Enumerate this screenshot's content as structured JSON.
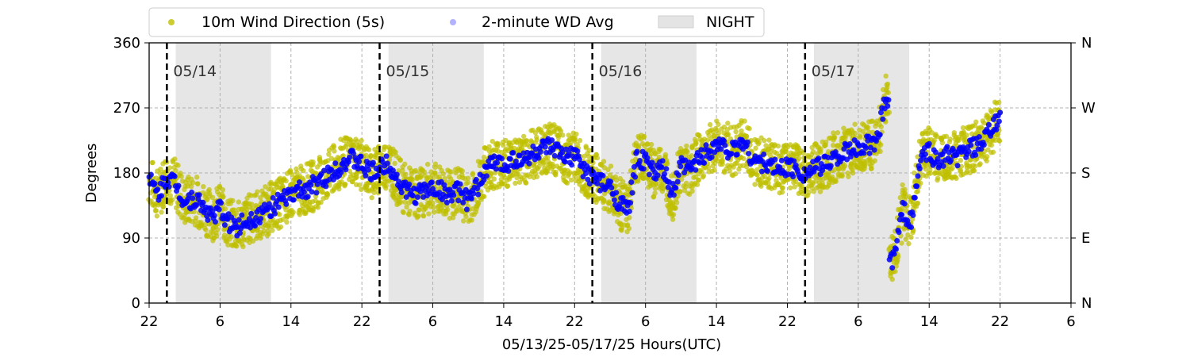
{
  "chart_data": {
    "type": "scatter",
    "title": "",
    "xlabel": "05/13/25-05/17/25  Hours(UTC)",
    "ylabel": "Degrees",
    "xlim": [
      "2025-05-13T22:00",
      "2025-05-18T06:00"
    ],
    "ylim": [
      0,
      360
    ],
    "x_ticks": [
      {
        "t": "2025-05-13T22:00",
        "label": "22"
      },
      {
        "t": "2025-05-14T06:00",
        "label": "6"
      },
      {
        "t": "2025-05-14T14:00",
        "label": "14"
      },
      {
        "t": "2025-05-14T22:00",
        "label": "22"
      },
      {
        "t": "2025-05-15T06:00",
        "label": "6"
      },
      {
        "t": "2025-05-15T14:00",
        "label": "14"
      },
      {
        "t": "2025-05-15T22:00",
        "label": "22"
      },
      {
        "t": "2025-05-16T06:00",
        "label": "6"
      },
      {
        "t": "2025-05-16T14:00",
        "label": "14"
      },
      {
        "t": "2025-05-16T22:00",
        "label": "22"
      },
      {
        "t": "2025-05-17T06:00",
        "label": "6"
      },
      {
        "t": "2025-05-17T14:00",
        "label": "14"
      },
      {
        "t": "2025-05-17T22:00",
        "label": "22"
      },
      {
        "t": "2025-05-18T06:00",
        "label": "6"
      }
    ],
    "y_ticks": [
      0,
      90,
      180,
      270,
      360
    ],
    "y_ticks_right": [
      {
        "value": 0,
        "label": "N"
      },
      {
        "value": 90,
        "label": "E"
      },
      {
        "value": 180,
        "label": "S"
      },
      {
        "value": 270,
        "label": "W"
      },
      {
        "value": 360,
        "label": "N"
      }
    ],
    "grid": true,
    "legend": {
      "placement": "top",
      "entries": [
        "10m Wind Direction (5s)",
        "2-minute WD Avg",
        "NIGHT"
      ]
    },
    "colors": {
      "wind_5s": "#bfbf00",
      "wd_avg": "#0000ff",
      "night": "#d9d9d9",
      "day_line": "#000000",
      "grid": "#b0b0b0"
    },
    "night_bands": [
      {
        "start": "2025-05-14T01:00",
        "end": "2025-05-14T11:45"
      },
      {
        "start": "2025-05-15T01:00",
        "end": "2025-05-15T11:45"
      },
      {
        "start": "2025-05-16T01:00",
        "end": "2025-05-16T11:45"
      },
      {
        "start": "2025-05-17T01:00",
        "end": "2025-05-17T11:45"
      }
    ],
    "day_markers": [
      {
        "t": "2025-05-14T00:00",
        "label": "05/14"
      },
      {
        "t": "2025-05-15T00:00",
        "label": "05/15"
      },
      {
        "t": "2025-05-16T00:00",
        "label": "05/16"
      },
      {
        "t": "2025-05-17T00:00",
        "label": "05/17"
      }
    ],
    "series": [
      {
        "name": "2-minute WD Avg",
        "points": [
          [
            "2025-05-13T22:00",
            170
          ],
          [
            "2025-05-13T23:00",
            150
          ],
          [
            "2025-05-14T00:00",
            175
          ],
          [
            "2025-05-14T01:00",
            165
          ],
          [
            "2025-05-14T02:00",
            140
          ],
          [
            "2025-05-14T03:00",
            145
          ],
          [
            "2025-05-14T04:00",
            135
          ],
          [
            "2025-05-14T05:00",
            120
          ],
          [
            "2025-05-14T06:00",
            130
          ],
          [
            "2025-05-14T07:00",
            110
          ],
          [
            "2025-05-14T08:00",
            105
          ],
          [
            "2025-05-14T09:00",
            115
          ],
          [
            "2025-05-14T10:00",
            120
          ],
          [
            "2025-05-14T11:00",
            125
          ],
          [
            "2025-05-14T12:00",
            135
          ],
          [
            "2025-05-14T13:00",
            140
          ],
          [
            "2025-05-14T14:00",
            150
          ],
          [
            "2025-05-14T15:00",
            155
          ],
          [
            "2025-05-14T16:00",
            160
          ],
          [
            "2025-05-14T17:00",
            165
          ],
          [
            "2025-05-14T18:00",
            175
          ],
          [
            "2025-05-14T19:00",
            185
          ],
          [
            "2025-05-14T20:00",
            195
          ],
          [
            "2025-05-14T21:00",
            200
          ],
          [
            "2025-05-14T22:00",
            190
          ],
          [
            "2025-05-14T23:00",
            180
          ],
          [
            "2025-05-15T00:00",
            185
          ],
          [
            "2025-05-15T01:00",
            195
          ],
          [
            "2025-05-15T02:00",
            170
          ],
          [
            "2025-05-15T03:00",
            155
          ],
          [
            "2025-05-15T04:00",
            150
          ],
          [
            "2025-05-15T05:00",
            155
          ],
          [
            "2025-05-15T06:00",
            160
          ],
          [
            "2025-05-15T07:00",
            155
          ],
          [
            "2025-05-15T08:00",
            150
          ],
          [
            "2025-05-15T09:00",
            155
          ],
          [
            "2025-05-15T10:00",
            140
          ],
          [
            "2025-05-15T11:00",
            160
          ],
          [
            "2025-05-15T12:00",
            185
          ],
          [
            "2025-05-15T13:00",
            195
          ],
          [
            "2025-05-15T14:00",
            190
          ],
          [
            "2025-05-15T15:00",
            200
          ],
          [
            "2025-05-15T16:00",
            195
          ],
          [
            "2025-05-15T17:00",
            205
          ],
          [
            "2025-05-15T18:00",
            210
          ],
          [
            "2025-05-15T19:00",
            215
          ],
          [
            "2025-05-15T20:00",
            210
          ],
          [
            "2025-05-15T21:00",
            200
          ],
          [
            "2025-05-15T22:00",
            205
          ],
          [
            "2025-05-15T23:00",
            185
          ],
          [
            "2025-05-16T00:00",
            175
          ],
          [
            "2025-05-16T01:00",
            165
          ],
          [
            "2025-05-16T02:00",
            160
          ],
          [
            "2025-05-16T03:00",
            140
          ],
          [
            "2025-05-16T04:00",
            125
          ],
          [
            "2025-05-16T05:00",
            200
          ],
          [
            "2025-05-16T06:00",
            195
          ],
          [
            "2025-05-16T07:00",
            180
          ],
          [
            "2025-05-16T08:00",
            185
          ],
          [
            "2025-05-16T09:00",
            150
          ],
          [
            "2025-05-16T10:00",
            190
          ],
          [
            "2025-05-16T11:00",
            185
          ],
          [
            "2025-05-16T12:00",
            200
          ],
          [
            "2025-05-16T13:00",
            210
          ],
          [
            "2025-05-16T14:00",
            220
          ],
          [
            "2025-05-16T15:00",
            215
          ],
          [
            "2025-05-16T16:00",
            210
          ],
          [
            "2025-05-16T17:00",
            225
          ],
          [
            "2025-05-16T18:00",
            200
          ],
          [
            "2025-05-16T19:00",
            195
          ],
          [
            "2025-05-16T20:00",
            190
          ],
          [
            "2025-05-16T21:00",
            185
          ],
          [
            "2025-05-16T22:00",
            190
          ],
          [
            "2025-05-16T23:00",
            185
          ],
          [
            "2025-05-17T00:00",
            180
          ],
          [
            "2025-05-17T01:00",
            185
          ],
          [
            "2025-05-17T02:00",
            190
          ],
          [
            "2025-05-17T03:00",
            200
          ],
          [
            "2025-05-17T04:00",
            205
          ],
          [
            "2025-05-17T05:00",
            210
          ],
          [
            "2025-05-17T06:00",
            215
          ],
          [
            "2025-05-17T07:00",
            220
          ],
          [
            "2025-05-17T08:00",
            215
          ],
          [
            "2025-05-17T09:00",
            280
          ],
          [
            "2025-05-17T10:00",
            60
          ],
          [
            "2025-05-17T11:00",
            130
          ],
          [
            "2025-05-17T12:00",
            110
          ],
          [
            "2025-05-17T13:00",
            200
          ],
          [
            "2025-05-17T14:00",
            210
          ],
          [
            "2025-05-17T15:00",
            195
          ],
          [
            "2025-05-17T16:00",
            205
          ],
          [
            "2025-05-17T17:00",
            200
          ],
          [
            "2025-05-17T18:00",
            210
          ],
          [
            "2025-05-17T19:00",
            215
          ],
          [
            "2025-05-17T20:00",
            220
          ],
          [
            "2025-05-17T21:00",
            240
          ],
          [
            "2025-05-17T22:00",
            255
          ]
        ]
      }
    ]
  }
}
